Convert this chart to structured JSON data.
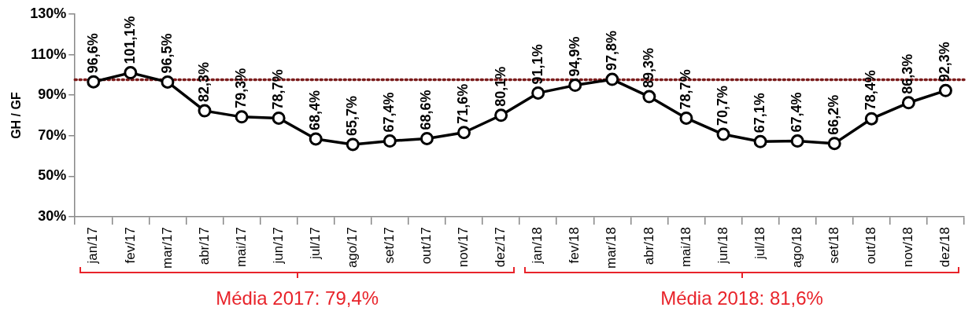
{
  "chart_data": {
    "type": "line",
    "ylabel": "GH / GF",
    "categories": [
      "jan/17",
      "fev/17",
      "mar/17",
      "abr/17",
      "mai/17",
      "jun/17",
      "jul/17",
      "ago/17",
      "set/17",
      "out/17",
      "nov/17",
      "dez/17",
      "jan/18",
      "fev/18",
      "mar/18",
      "abr/18",
      "mai/18",
      "jun/18",
      "jul/18",
      "ago/18",
      "set/18",
      "out/18",
      "nov/18",
      "dez/18"
    ],
    "series": [
      {
        "color": "#000000",
        "values": [
          96.6,
          101.1,
          96.5,
          82.3,
          79.3,
          78.7,
          68.4,
          65.7,
          67.4,
          68.6,
          71.6,
          80.1,
          91.1,
          94.9,
          97.8,
          89.3,
          78.7,
          70.7,
          67.1,
          67.4,
          66.2,
          78.4,
          86.3,
          92.3
        ],
        "value_labels": [
          "96,6%",
          "101,1%",
          "96,5%",
          "82,3%",
          "79,3%",
          "78,7%",
          "68,4%",
          "65,7%",
          "67,4%",
          "68,6%",
          "71,6%",
          "80,1%",
          "91,1%",
          "94,9%",
          "97,8%",
          "89,3%",
          "78,7%",
          "70,7%",
          "67,1%",
          "67,4%",
          "66,2%",
          "78,4%",
          "86,3%",
          "92,3%"
        ]
      }
    ],
    "ylim": [
      30,
      130
    ],
    "yticks": [
      {
        "value": 30,
        "label": "30%"
      },
      {
        "value": 50,
        "label": "50%"
      },
      {
        "value": 70,
        "label": "70%"
      },
      {
        "value": 90,
        "label": "90%"
      },
      {
        "value": 110,
        "label": "110%"
      },
      {
        "value": 130,
        "label": "130%"
      }
    ],
    "grid": false,
    "legend": false,
    "marker": "circle",
    "line_style": "solid",
    "ref_lines": [
      {
        "axis": "y",
        "value": 97.6,
        "color": "#7b1c1c",
        "line_style": "dotted"
      }
    ],
    "annotations": [
      "Média 2017: 79,4%",
      "Média 2018: 81,6%"
    ]
  }
}
